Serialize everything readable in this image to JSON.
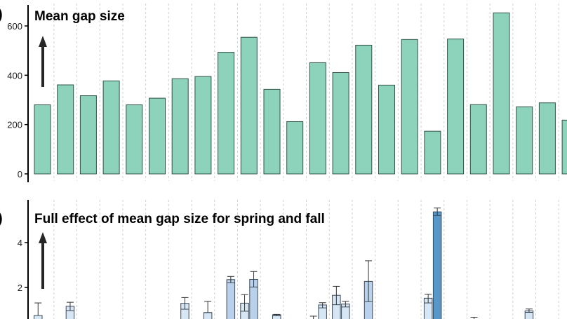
{
  "chart_data": [
    {
      "type": "bar",
      "title": "Mean gap size",
      "panel_label": ")",
      "yticks": [
        0,
        200,
        400,
        600
      ],
      "ylim": [
        0,
        680
      ],
      "grid": "vertical dashed between categories",
      "colors": {
        "fill": "#8dd2bb",
        "stroke": "#2f5147"
      },
      "values": [
        280,
        361,
        317,
        377,
        280,
        307,
        386,
        395,
        493,
        554,
        343,
        212,
        451,
        411,
        522,
        360,
        545,
        173,
        547,
        281,
        653,
        272,
        288,
        218
      ]
    },
    {
      "type": "bar",
      "title": "Full effect of mean gap size for spring and fall",
      "panel_label": ")",
      "yticks": [
        2,
        4
      ],
      "ylim": [
        0,
        5.8
      ],
      "grid": "vertical dashed between categories",
      "colors": {
        "light": "#d7e6f4",
        "mid": "#b9d1ea",
        "dark": "#5898c9",
        "stroke": "#3d4a57"
      },
      "bars": [
        {
          "category": 0,
          "slot": "left",
          "value": 0.75,
          "lower": 0.75,
          "upper": 1.31
        },
        {
          "category": 1,
          "slot": "right",
          "value": 1.16,
          "lower": 0.97,
          "upper": 1.34
        },
        {
          "category": 6,
          "slot": "right",
          "value": 1.29,
          "lower": 1.03,
          "upper": 1.55
        },
        {
          "category": 7,
          "slot": "right",
          "value": 0.88,
          "lower": 0.88,
          "upper": 1.38
        },
        {
          "category": 8,
          "slot": "right",
          "value": 2.35,
          "lower": 2.21,
          "upper": 2.49
        },
        {
          "category": 9,
          "slot": "left",
          "value": 1.3,
          "lower": 0.94,
          "upper": 1.68
        },
        {
          "category": 9,
          "slot": "right",
          "value": 2.36,
          "lower": 2.02,
          "upper": 2.71
        },
        {
          "category": 10,
          "slot": "right",
          "value": 0.78,
          "lower": 0.74,
          "upper": 0.8
        },
        {
          "category": 12,
          "slot": "left",
          "value": 0.5,
          "lower": 0.5,
          "upper": 0.72
        },
        {
          "category": 12,
          "slot": "right",
          "value": 1.22,
          "lower": 1.09,
          "upper": 1.32
        },
        {
          "category": 13,
          "slot": "left",
          "value": 1.65,
          "lower": 1.23,
          "upper": 2.05
        },
        {
          "category": 13,
          "slot": "right",
          "value": 1.26,
          "lower": 1.13,
          "upper": 1.38
        },
        {
          "category": 14,
          "slot": "right",
          "value": 2.27,
          "lower": 1.37,
          "upper": 3.19
        },
        {
          "category": 17,
          "slot": "left",
          "value": 1.52,
          "lower": 1.31,
          "upper": 1.7
        },
        {
          "category": 17,
          "slot": "right",
          "value": 5.37,
          "lower": 5.21,
          "upper": 5.54
        },
        {
          "category": 19,
          "slot": "left",
          "value": 0.5,
          "lower": 0.5,
          "upper": 0.67
        },
        {
          "category": 21,
          "slot": "right",
          "value": 0.96,
          "lower": 0.89,
          "upper": 1.04
        }
      ]
    }
  ]
}
